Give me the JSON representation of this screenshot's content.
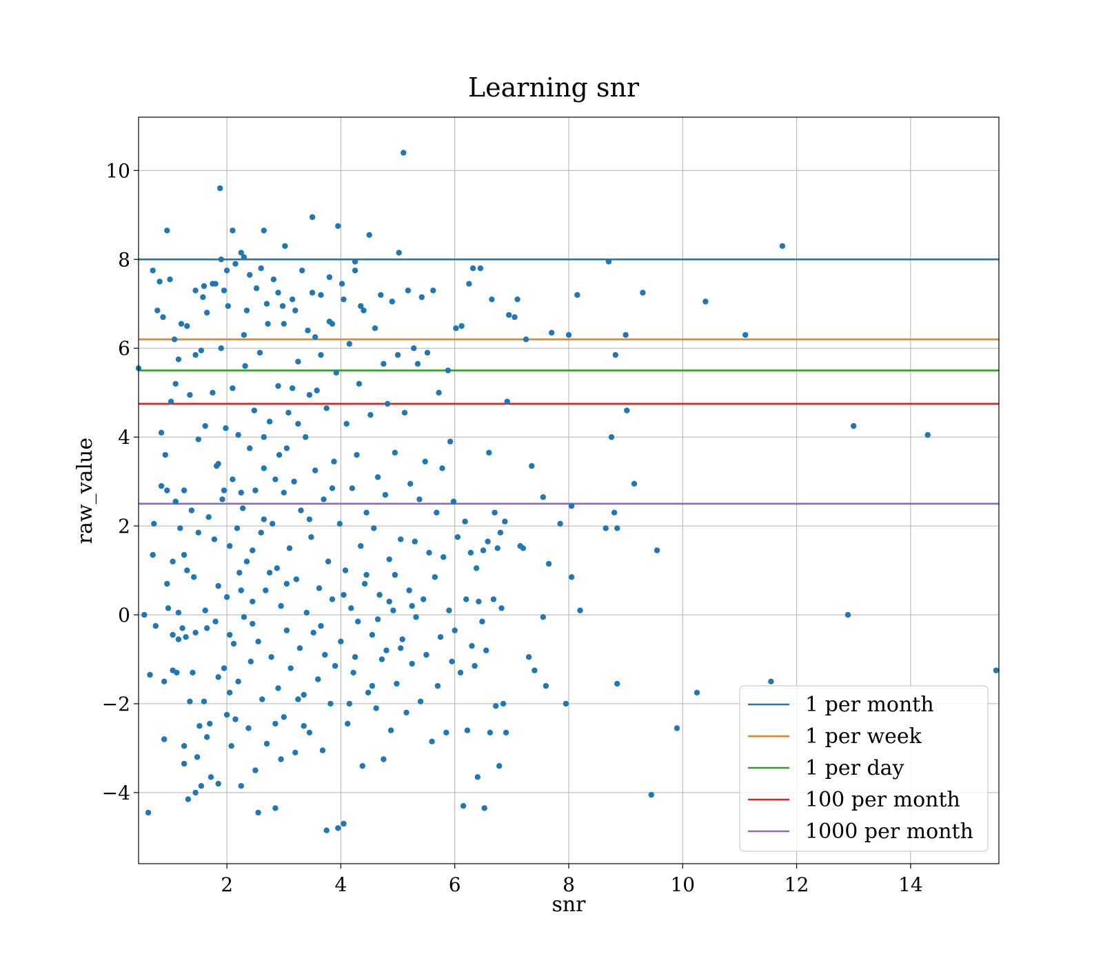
{
  "chart_data": {
    "type": "scatter",
    "title": "Learning snr",
    "xlabel": "snr",
    "ylabel": "raw_value",
    "xlim": [
      0.45,
      15.55
    ],
    "ylim": [
      -5.6,
      11.2
    ],
    "xticks": [
      2,
      4,
      6,
      8,
      10,
      12,
      14
    ],
    "yticks": [
      -4,
      -2,
      0,
      2,
      4,
      6,
      8,
      10
    ],
    "ytick_labels": [
      "−4",
      "−2",
      "0",
      "2",
      "4",
      "6",
      "8",
      "10"
    ],
    "grid": true,
    "legend_position": "lower-right",
    "point_color": "#1f77b4",
    "hlines": [
      {
        "name": "1 per month",
        "y": 8.0,
        "color": "#1f77b4"
      },
      {
        "name": "1 per week",
        "y": 6.2,
        "color": "#ff7f0e"
      },
      {
        "name": "1 per day",
        "y": 5.5,
        "color": "#2ca02c"
      },
      {
        "name": "100 per month",
        "y": 4.75,
        "color": "#d62728"
      },
      {
        "name": "1000 per month",
        "y": 2.5,
        "color": "#9467bd"
      }
    ],
    "points": [
      [
        0.45,
        5.55
      ],
      [
        0.55,
        0.0
      ],
      [
        0.65,
        -1.35
      ],
      [
        0.62,
        -4.45
      ],
      [
        0.7,
        7.75
      ],
      [
        0.7,
        1.35
      ],
      [
        0.72,
        2.05
      ],
      [
        0.75,
        -0.25
      ],
      [
        0.78,
        6.85
      ],
      [
        0.82,
        7.5
      ],
      [
        0.85,
        4.1
      ],
      [
        0.85,
        2.9
      ],
      [
        0.88,
        6.7
      ],
      [
        0.9,
        -1.5
      ],
      [
        0.9,
        -2.8
      ],
      [
        0.92,
        3.6
      ],
      [
        0.95,
        8.65
      ],
      [
        0.95,
        0.7
      ],
      [
        0.97,
        0.15
      ],
      [
        1.0,
        7.55
      ],
      [
        1.02,
        4.8
      ],
      [
        1.05,
        1.2
      ],
      [
        1.05,
        -0.45
      ],
      [
        1.08,
        6.2
      ],
      [
        1.1,
        5.2
      ],
      [
        1.1,
        2.55
      ],
      [
        1.12,
        -1.3
      ],
      [
        1.15,
        5.75
      ],
      [
        1.15,
        0.05
      ],
      [
        1.18,
        1.95
      ],
      [
        1.2,
        6.55
      ],
      [
        1.22,
        -0.3
      ],
      [
        1.25,
        -3.35
      ],
      [
        1.25,
        2.8
      ],
      [
        1.28,
        -0.5
      ],
      [
        1.3,
        6.5
      ],
      [
        1.3,
        1.0
      ],
      [
        1.32,
        -4.15
      ],
      [
        1.35,
        4.95
      ],
      [
        1.38,
        2.35
      ],
      [
        1.4,
        -1.3
      ],
      [
        1.42,
        0.85
      ],
      [
        1.45,
        7.3
      ],
      [
        1.45,
        -0.4
      ],
      [
        1.48,
        -3.2
      ],
      [
        1.5,
        3.95
      ],
      [
        1.5,
        1.85
      ],
      [
        1.52,
        -2.5
      ],
      [
        1.55,
        5.95
      ],
      [
        1.58,
        7.15
      ],
      [
        1.6,
        -1.95
      ],
      [
        1.62,
        4.25
      ],
      [
        1.62,
        0.1
      ],
      [
        1.65,
        6.8
      ],
      [
        1.68,
        2.2
      ],
      [
        1.7,
        -2.45
      ],
      [
        1.72,
        -3.65
      ],
      [
        1.75,
        5.0
      ],
      [
        1.78,
        1.7
      ],
      [
        1.8,
        7.45
      ],
      [
        1.8,
        -0.15
      ],
      [
        1.82,
        3.35
      ],
      [
        1.85,
        -3.8
      ],
      [
        1.85,
        0.65
      ],
      [
        1.88,
        9.6
      ],
      [
        1.9,
        6.0
      ],
      [
        1.92,
        2.6
      ],
      [
        1.95,
        -1.2
      ],
      [
        1.95,
        7.3
      ],
      [
        1.98,
        4.2
      ],
      [
        2.0,
        -2.25
      ],
      [
        2.0,
        0.4
      ],
      [
        2.02,
        6.95
      ],
      [
        2.05,
        1.55
      ],
      [
        2.08,
        -2.95
      ],
      [
        2.1,
        5.1
      ],
      [
        2.1,
        3.05
      ],
      [
        2.12,
        -0.65
      ],
      [
        2.15,
        7.9
      ],
      [
        2.18,
        1.95
      ],
      [
        2.2,
        -1.5
      ],
      [
        2.2,
        4.05
      ],
      [
        2.22,
        0.95
      ],
      [
        2.25,
        8.15
      ],
      [
        2.25,
        -3.85
      ],
      [
        2.28,
        2.4
      ],
      [
        2.3,
        6.3
      ],
      [
        2.3,
        -0.05
      ],
      [
        2.32,
        5.6
      ],
      [
        2.35,
        1.2
      ],
      [
        2.38,
        -2.55
      ],
      [
        2.4,
        7.65
      ],
      [
        2.4,
        3.75
      ],
      [
        2.42,
        -1.05
      ],
      [
        2.45,
        0.3
      ],
      [
        2.48,
        4.6
      ],
      [
        2.5,
        -3.5
      ],
      [
        2.5,
        2.8
      ],
      [
        2.52,
        7.35
      ],
      [
        2.55,
        -0.6
      ],
      [
        2.58,
        5.9
      ],
      [
        2.6,
        1.85
      ],
      [
        2.62,
        -1.9
      ],
      [
        2.65,
        3.3
      ],
      [
        2.65,
        8.65
      ],
      [
        2.68,
        0.55
      ],
      [
        2.7,
        -2.9
      ],
      [
        2.72,
        6.55
      ],
      [
        2.75,
        4.35
      ],
      [
        2.78,
        -0.95
      ],
      [
        2.8,
        2.05
      ],
      [
        2.82,
        7.55
      ],
      [
        2.85,
        -4.35
      ],
      [
        2.88,
        1.05
      ],
      [
        2.9,
        5.15
      ],
      [
        2.9,
        -1.65
      ],
      [
        2.92,
        3.6
      ],
      [
        2.95,
        0.2
      ],
      [
        2.98,
        6.95
      ],
      [
        3.0,
        -2.3
      ],
      [
        3.0,
        2.75
      ],
      [
        3.02,
        8.3
      ],
      [
        3.05,
        -0.35
      ],
      [
        3.08,
        4.55
      ],
      [
        3.1,
        1.5
      ],
      [
        3.12,
        -1.2
      ],
      [
        3.15,
        7.1
      ],
      [
        3.18,
        3.0
      ],
      [
        3.2,
        -3.1
      ],
      [
        3.22,
        0.8
      ],
      [
        3.25,
        5.7
      ],
      [
        3.28,
        -0.75
      ],
      [
        3.3,
        2.35
      ],
      [
        3.32,
        7.75
      ],
      [
        3.35,
        -1.8
      ],
      [
        3.38,
        4.0
      ],
      [
        3.4,
        0.05
      ],
      [
        3.42,
        6.4
      ],
      [
        3.45,
        -2.65
      ],
      [
        3.48,
        1.75
      ],
      [
        3.5,
        8.95
      ],
      [
        3.52,
        -0.4
      ],
      [
        3.55,
        3.25
      ],
      [
        3.58,
        5.05
      ],
      [
        3.6,
        -1.45
      ],
      [
        3.62,
        0.6
      ],
      [
        3.65,
        7.2
      ],
      [
        3.68,
        -3.05
      ],
      [
        3.7,
        2.6
      ],
      [
        3.72,
        -0.9
      ],
      [
        3.75,
        4.65
      ],
      [
        3.78,
        1.2
      ],
      [
        3.8,
        6.6
      ],
      [
        3.82,
        -2.0
      ],
      [
        3.85,
        0.35
      ],
      [
        3.88,
        3.45
      ],
      [
        3.9,
        -1.15
      ],
      [
        3.92,
        5.45
      ],
      [
        3.95,
        8.75
      ],
      [
        3.98,
        2.05
      ],
      [
        4.0,
        -0.6
      ],
      [
        4.02,
        7.45
      ],
      [
        4.05,
        -4.7
      ],
      [
        4.08,
        1.0
      ],
      [
        4.1,
        4.3
      ],
      [
        4.12,
        -2.45
      ],
      [
        4.15,
        6.1
      ],
      [
        4.18,
        0.15
      ],
      [
        4.2,
        2.85
      ],
      [
        4.22,
        -1.3
      ],
      [
        4.25,
        7.95
      ],
      [
        4.28,
        3.6
      ],
      [
        4.3,
        -0.15
      ],
      [
        4.32,
        5.2
      ],
      [
        4.35,
        1.55
      ],
      [
        4.38,
        -3.4
      ],
      [
        4.4,
        6.85
      ],
      [
        4.42,
        0.7
      ],
      [
        4.45,
        2.3
      ],
      [
        4.48,
        -1.75
      ],
      [
        4.5,
        8.55
      ],
      [
        4.52,
        4.5
      ],
      [
        4.55,
        -0.45
      ],
      [
        4.58,
        1.95
      ],
      [
        4.6,
        6.45
      ],
      [
        4.62,
        -2.1
      ],
      [
        4.65,
        3.1
      ],
      [
        4.68,
        0.45
      ],
      [
        4.7,
        7.2
      ],
      [
        4.72,
        -1.0
      ],
      [
        4.75,
        5.65
      ],
      [
        4.78,
        2.7
      ],
      [
        4.8,
        -0.8
      ],
      [
        4.82,
        4.75
      ],
      [
        4.85,
        1.25
      ],
      [
        4.88,
        -2.6
      ],
      [
        4.9,
        7.05
      ],
      [
        4.92,
        0.1
      ],
      [
        4.95,
        3.65
      ],
      [
        4.98,
        -1.55
      ],
      [
        5.0,
        5.85
      ],
      [
        5.02,
        8.15
      ],
      [
        5.05,
        1.7
      ],
      [
        5.08,
        -0.55
      ],
      [
        5.1,
        10.4
      ],
      [
        5.12,
        4.55
      ],
      [
        5.15,
        -2.2
      ],
      [
        5.18,
        7.3
      ],
      [
        5.2,
        0.55
      ],
      [
        5.22,
        2.95
      ],
      [
        5.25,
        -1.1
      ],
      [
        5.28,
        6.0
      ],
      [
        5.3,
        1.65
      ],
      [
        5.32,
        -0.05
      ],
      [
        5.35,
        5.65
      ],
      [
        5.38,
        2.6
      ],
      [
        5.4,
        -1.95
      ],
      [
        5.42,
        7.15
      ],
      [
        5.45,
        0.35
      ],
      [
        5.48,
        3.45
      ],
      [
        5.5,
        -0.9
      ],
      [
        5.52,
        5.9
      ],
      [
        5.55,
        1.4
      ],
      [
        5.6,
        -2.85
      ],
      [
        5.62,
        7.3
      ],
      [
        5.65,
        0.85
      ],
      [
        5.68,
        2.3
      ],
      [
        5.7,
        -1.6
      ],
      [
        5.72,
        5.0
      ],
      [
        5.75,
        -0.5
      ],
      [
        5.78,
        3.3
      ],
      [
        5.8,
        1.3
      ],
      [
        5.85,
        -2.65
      ],
      [
        5.88,
        5.5
      ],
      [
        5.9,
        0.1
      ],
      [
        5.92,
        3.9
      ],
      [
        5.95,
        -1.05
      ],
      [
        5.98,
        2.55
      ],
      [
        6.0,
        -0.35
      ],
      [
        6.02,
        6.45
      ],
      [
        6.05,
        1.75
      ],
      [
        6.1,
        -1.3
      ],
      [
        6.12,
        6.5
      ],
      [
        6.15,
        -4.3
      ],
      [
        6.18,
        2.1
      ],
      [
        6.2,
        0.35
      ],
      [
        6.22,
        -2.6
      ],
      [
        6.25,
        7.45
      ],
      [
        6.28,
        1.4
      ],
      [
        6.3,
        -0.7
      ],
      [
        6.32,
        7.8
      ],
      [
        6.35,
        -1.15
      ],
      [
        6.38,
        1.05
      ],
      [
        6.4,
        -3.65
      ],
      [
        6.42,
        0.3
      ],
      [
        6.45,
        7.8
      ],
      [
        6.48,
        -0.15
      ],
      [
        6.5,
        1.45
      ],
      [
        6.52,
        -4.35
      ],
      [
        6.55,
        -0.8
      ],
      [
        6.58,
        1.65
      ],
      [
        6.6,
        3.65
      ],
      [
        6.62,
        -2.65
      ],
      [
        6.65,
        7.1
      ],
      [
        6.68,
        0.35
      ],
      [
        6.7,
        2.3
      ],
      [
        6.72,
        -2.05
      ],
      [
        6.75,
        1.5
      ],
      [
        6.78,
        -3.4
      ],
      [
        6.8,
        1.85
      ],
      [
        6.82,
        0.15
      ],
      [
        6.85,
        -2.0
      ],
      [
        6.88,
        2.1
      ],
      [
        6.9,
        -2.65
      ],
      [
        6.92,
        4.8
      ],
      [
        6.95,
        6.75
      ],
      [
        7.05,
        6.7
      ],
      [
        7.1,
        7.1
      ],
      [
        7.15,
        1.55
      ],
      [
        7.2,
        1.5
      ],
      [
        7.25,
        6.2
      ],
      [
        7.3,
        -0.95
      ],
      [
        7.35,
        3.35
      ],
      [
        7.4,
        -1.25
      ],
      [
        7.55,
        2.65
      ],
      [
        7.55,
        -0.05
      ],
      [
        7.6,
        -1.6
      ],
      [
        7.65,
        1.15
      ],
      [
        7.7,
        6.35
      ],
      [
        7.85,
        2.05
      ],
      [
        7.95,
        -2.0
      ],
      [
        8.0,
        6.3
      ],
      [
        8.05,
        2.45
      ],
      [
        8.05,
        0.85
      ],
      [
        8.15,
        7.2
      ],
      [
        8.2,
        0.1
      ],
      [
        8.65,
        1.95
      ],
      [
        8.7,
        7.95
      ],
      [
        8.75,
        4.0
      ],
      [
        8.8,
        2.3
      ],
      [
        8.82,
        5.85
      ],
      [
        8.85,
        1.95
      ],
      [
        8.85,
        -1.55
      ],
      [
        9.0,
        6.3
      ],
      [
        9.02,
        4.6
      ],
      [
        9.15,
        2.95
      ],
      [
        9.3,
        7.25
      ],
      [
        9.45,
        -4.05
      ],
      [
        9.55,
        1.45
      ],
      [
        9.9,
        -2.55
      ],
      [
        10.25,
        -1.75
      ],
      [
        10.4,
        7.05
      ],
      [
        11.1,
        6.3
      ],
      [
        11.55,
        -1.5
      ],
      [
        11.75,
        8.3
      ],
      [
        12.9,
        0.0
      ],
      [
        13.0,
        4.25
      ],
      [
        14.3,
        4.05
      ],
      [
        15.5,
        -1.25
      ],
      [
        1.15,
        -0.55
      ],
      [
        1.35,
        -1.95
      ],
      [
        1.55,
        -3.85
      ],
      [
        1.75,
        7.45
      ],
      [
        1.95,
        2.8
      ],
      [
        2.15,
        -2.35
      ],
      [
        2.35,
        6.85
      ],
      [
        2.55,
        -4.45
      ],
      [
        2.75,
        0.95
      ],
      [
        2.95,
        -3.25
      ],
      [
        3.15,
        5.1
      ],
      [
        3.35,
        -2.5
      ],
      [
        3.55,
        6.25
      ],
      [
        3.75,
        -4.85
      ],
      [
        3.95,
        -4.8
      ],
      [
        4.15,
        -2.0
      ],
      [
        4.35,
        6.95
      ],
      [
        4.55,
        -1.6
      ],
      [
        4.75,
        -3.25
      ],
      [
        4.95,
        0.9
      ],
      [
        1.25,
        1.35
      ],
      [
        1.45,
        5.85
      ],
      [
        1.65,
        -0.3
      ],
      [
        1.85,
        3.4
      ],
      [
        2.05,
        -1.75
      ],
      [
        2.25,
        2.75
      ],
      [
        2.45,
        -0.2
      ],
      [
        2.65,
        4.0
      ],
      [
        2.85,
        -2.45
      ],
      [
        3.05,
        0.7
      ],
      [
        3.25,
        -1.9
      ],
      [
        3.45,
        2.15
      ],
      [
        3.65,
        -0.25
      ],
      [
        3.85,
        2.85
      ],
      [
        4.05,
        0.45
      ],
      [
        4.25,
        -0.95
      ],
      [
        4.45,
        0.9
      ],
      [
        4.65,
        -0.1
      ],
      [
        4.85,
        0.3
      ],
      [
        5.05,
        -0.75
      ],
      [
        5.25,
        0.2
      ],
      [
        0.95,
        2.8
      ],
      [
        1.05,
        -1.25
      ],
      [
        1.25,
        -2.95
      ],
      [
        1.45,
        -4.0
      ],
      [
        1.65,
        -2.75
      ],
      [
        1.85,
        -1.4
      ],
      [
        2.05,
        -0.45
      ],
      [
        2.25,
        0.55
      ],
      [
        2.45,
        1.45
      ],
      [
        2.65,
        2.15
      ],
      [
        2.85,
        3.05
      ],
      [
        3.05,
        3.75
      ],
      [
        3.25,
        4.3
      ],
      [
        3.45,
        4.95
      ],
      [
        3.65,
        5.85
      ],
      [
        3.85,
        6.55
      ],
      [
        4.05,
        7.1
      ],
      [
        4.25,
        7.75
      ],
      [
        2.0,
        7.75
      ],
      [
        2.3,
        8.05
      ],
      [
        2.6,
        7.8
      ],
      [
        2.9,
        7.25
      ],
      [
        3.2,
        6.85
      ],
      [
        3.5,
        7.25
      ],
      [
        3.8,
        7.6
      ],
      [
        1.6,
        7.4
      ],
      [
        1.9,
        8.0
      ],
      [
        2.1,
        8.65
      ],
      [
        2.7,
        7.0
      ],
      [
        3.0,
        6.55
      ]
    ],
    "legend": [
      "1 per month",
      "1 per week",
      "1 per day",
      "100 per month",
      "1000 per month"
    ]
  }
}
